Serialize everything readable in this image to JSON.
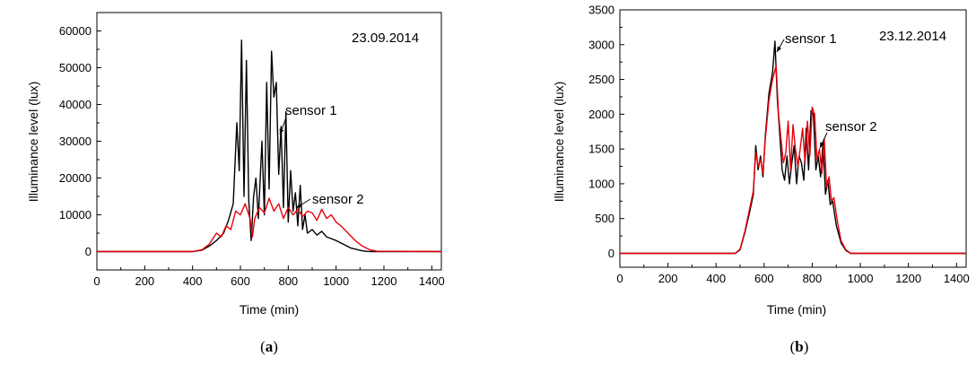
{
  "chart_data": [
    {
      "type": "line",
      "panel_label": "a",
      "date": "23.09.2014",
      "xlabel": "Time (min)",
      "ylabel": "Illuminance level (lux)",
      "xlim": [
        0,
        1440
      ],
      "ylim": [
        -5000,
        65000
      ],
      "xticks": [
        0,
        200,
        400,
        600,
        800,
        1000,
        1200,
        1400
      ],
      "yticks": [
        0,
        10000,
        20000,
        30000,
        40000,
        50000,
        60000
      ],
      "annotations": [
        {
          "text": "sensor 1",
          "series": "sensor 1"
        },
        {
          "text": "sensor 2",
          "series": "sensor 2"
        }
      ],
      "series": [
        {
          "name": "sensor 1",
          "color": "#000000",
          "x": [
            0,
            400,
            440,
            470,
            500,
            530,
            550,
            570,
            585,
            595,
            605,
            615,
            625,
            635,
            645,
            655,
            665,
            675,
            690,
            700,
            710,
            720,
            730,
            740,
            750,
            760,
            770,
            780,
            790,
            800,
            810,
            820,
            830,
            840,
            850,
            860,
            870,
            880,
            900,
            920,
            940,
            960,
            980,
            1000,
            1030,
            1060,
            1090,
            1110,
            1130,
            1150,
            1440
          ],
          "y": [
            0,
            0,
            400,
            1500,
            3000,
            5000,
            8500,
            13000,
            35000,
            22000,
            57500,
            15000,
            52000,
            14000,
            3000,
            15000,
            20000,
            9000,
            30000,
            10000,
            46000,
            17000,
            54500,
            42000,
            46000,
            21000,
            34000,
            12000,
            38000,
            8000,
            22000,
            11000,
            16000,
            7000,
            18000,
            6000,
            10000,
            5000,
            6000,
            4500,
            5500,
            4000,
            3500,
            3000,
            2000,
            1000,
            500,
            200,
            50,
            0,
            0
          ]
        },
        {
          "name": "sensor 2",
          "color": "#e8000b",
          "x": [
            0,
            400,
            440,
            470,
            500,
            520,
            540,
            560,
            580,
            600,
            620,
            640,
            650,
            660,
            680,
            700,
            720,
            740,
            760,
            780,
            800,
            820,
            840,
            860,
            880,
            900,
            920,
            940,
            960,
            980,
            1000,
            1020,
            1050,
            1080,
            1110,
            1140,
            1170,
            1440
          ],
          "y": [
            0,
            0,
            500,
            2000,
            5000,
            4000,
            7000,
            6000,
            11000,
            10000,
            13000,
            9000,
            4000,
            9000,
            12000,
            10500,
            14500,
            11000,
            13000,
            9000,
            12000,
            10000,
            11500,
            9500,
            11000,
            10500,
            8500,
            11500,
            9000,
            10000,
            8000,
            7000,
            5000,
            3000,
            1500,
            500,
            100,
            0
          ]
        }
      ]
    },
    {
      "type": "line",
      "panel_label": "b",
      "date": "23.12.2014",
      "xlabel": "Time (min)",
      "ylabel": "Illuminance level (lux)",
      "xlim": [
        0,
        1440
      ],
      "ylim": [
        -200,
        3500
      ],
      "xticks": [
        0,
        200,
        400,
        600,
        800,
        1000,
        1200,
        1400
      ],
      "yticks": [
        0,
        500,
        1000,
        1500,
        2000,
        2500,
        3000,
        3500
      ],
      "annotations": [
        {
          "text": "sensor 1",
          "series": "sensor 1"
        },
        {
          "text": "sensor 2",
          "series": "sensor 2"
        }
      ],
      "series": [
        {
          "name": "sensor 1",
          "color": "#000000",
          "x": [
            0,
            480,
            500,
            520,
            540,
            555,
            565,
            575,
            585,
            595,
            605,
            620,
            635,
            645,
            655,
            665,
            675,
            685,
            695,
            705,
            715,
            725,
            735,
            745,
            755,
            765,
            775,
            785,
            795,
            805,
            815,
            825,
            835,
            845,
            855,
            865,
            875,
            885,
            900,
            920,
            940,
            960,
            980,
            1440
          ],
          "y": [
            0,
            0,
            50,
            300,
            600,
            850,
            1550,
            1200,
            1400,
            1100,
            1700,
            2300,
            2600,
            3050,
            2200,
            1700,
            1200,
            1050,
            1400,
            1000,
            1300,
            1550,
            1000,
            1400,
            1300,
            1050,
            1800,
            1200,
            2050,
            2000,
            1200,
            1400,
            1100,
            1600,
            850,
            1050,
            700,
            750,
            400,
            150,
            40,
            0,
            0,
            0
          ]
        },
        {
          "name": "sensor 2",
          "color": "#e8000b",
          "x": [
            0,
            480,
            500,
            520,
            540,
            555,
            565,
            575,
            585,
            595,
            605,
            620,
            635,
            650,
            660,
            670,
            680,
            690,
            700,
            710,
            720,
            730,
            740,
            750,
            760,
            770,
            780,
            790,
            800,
            810,
            820,
            830,
            840,
            850,
            860,
            870,
            880,
            890,
            905,
            920,
            940,
            960,
            980,
            1440
          ],
          "y": [
            0,
            0,
            60,
            320,
            650,
            900,
            1450,
            1250,
            1350,
            1150,
            1650,
            2200,
            2500,
            2700,
            2000,
            1650,
            1300,
            1450,
            1900,
            1200,
            1850,
            1500,
            1250,
            1500,
            1800,
            1300,
            1900,
            1400,
            2100,
            2000,
            1350,
            1500,
            1150,
            1650,
            950,
            1100,
            750,
            800,
            450,
            180,
            50,
            0,
            0,
            0
          ]
        }
      ]
    }
  ]
}
